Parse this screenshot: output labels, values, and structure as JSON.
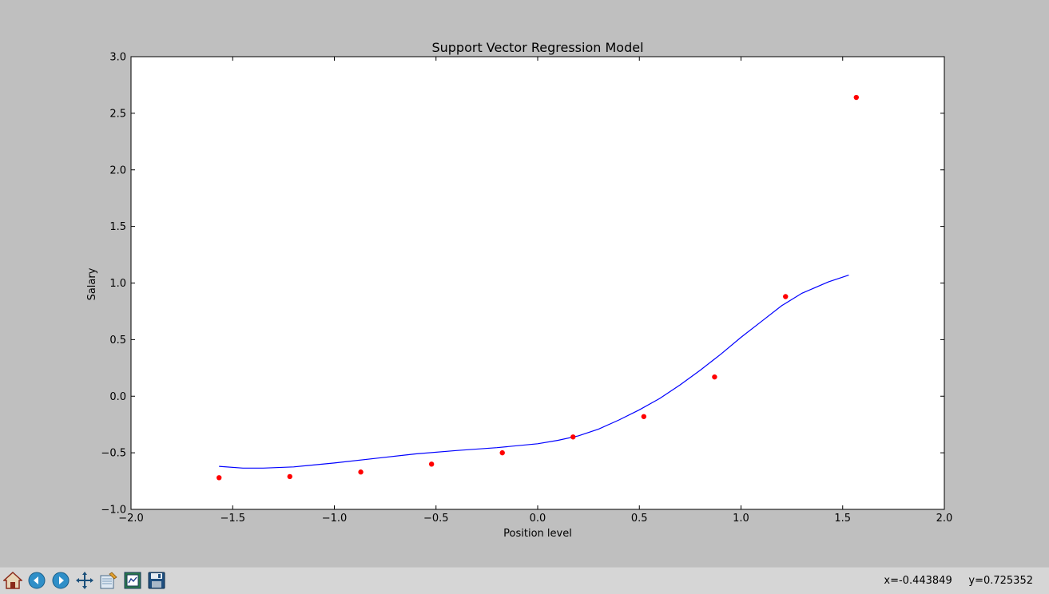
{
  "chart_data": {
    "type": "scatter",
    "title": "Support Vector Regression Model",
    "xlabel": "Position level",
    "ylabel": "Salary",
    "xlim": [
      -2.0,
      2.0
    ],
    "ylim": [
      -1.0,
      3.0
    ],
    "xticks": [
      "−2.0",
      "−1.5",
      "−1.0",
      "−0.5",
      "0.0",
      "0.5",
      "1.0",
      "1.5",
      "2.0"
    ],
    "yticks": [
      "−1.0",
      "−0.5",
      "0.0",
      "0.5",
      "1.0",
      "1.5",
      "2.0",
      "2.5",
      "3.0"
    ],
    "xtick_values": [
      -2.0,
      -1.5,
      -1.0,
      -0.5,
      0.0,
      0.5,
      1.0,
      1.5,
      2.0
    ],
    "ytick_values": [
      -1.0,
      -0.5,
      0.0,
      0.5,
      1.0,
      1.5,
      2.0,
      2.5,
      3.0
    ],
    "grid": false,
    "series": [
      {
        "kind": "scatter",
        "color": "#ff0000",
        "x": [
          -1.567,
          -1.219,
          -0.87,
          -0.522,
          -0.174,
          0.174,
          0.522,
          0.87,
          1.219,
          1.567
        ],
        "y": [
          -0.72,
          -0.71,
          -0.67,
          -0.6,
          -0.5,
          -0.36,
          -0.18,
          0.17,
          0.88,
          2.64
        ]
      },
      {
        "kind": "line",
        "color": "#0000ff",
        "x": [
          -1.567,
          -1.45,
          -1.35,
          -1.2,
          -1.0,
          -0.8,
          -0.6,
          -0.4,
          -0.2,
          0.0,
          0.1,
          0.2,
          0.3,
          0.4,
          0.5,
          0.6,
          0.7,
          0.8,
          0.9,
          1.0,
          1.1,
          1.2,
          1.3,
          1.43,
          1.53
        ],
        "y": [
          -0.62,
          -0.635,
          -0.635,
          -0.625,
          -0.59,
          -0.55,
          -0.51,
          -0.48,
          -0.455,
          -0.42,
          -0.39,
          -0.35,
          -0.29,
          -0.21,
          -0.12,
          -0.02,
          0.1,
          0.23,
          0.37,
          0.52,
          0.66,
          0.8,
          0.91,
          1.01,
          1.07
        ]
      }
    ]
  },
  "toolbar": {
    "buttons": [
      {
        "name": "home-icon"
      },
      {
        "name": "back-arrow-icon"
      },
      {
        "name": "forward-arrow-icon"
      },
      {
        "name": "pan-icon"
      },
      {
        "name": "zoom-rect-icon"
      },
      {
        "name": "subplots-config-icon"
      },
      {
        "name": "save-icon"
      }
    ],
    "coordinates": "x=-0.443849     y=0.725352"
  },
  "colors": {
    "window_bg": "#bfbfbf",
    "toolbar_bg": "#d6d6d6",
    "scatter": "#ff0000",
    "line": "#0000ff"
  }
}
